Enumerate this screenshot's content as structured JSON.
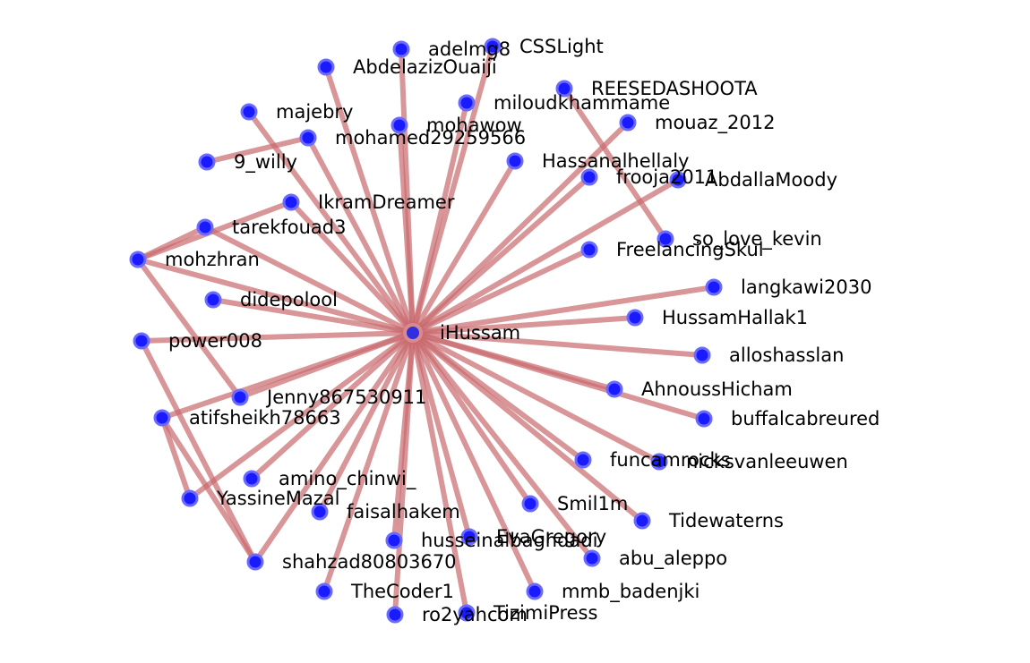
{
  "graph": {
    "hub": {
      "id": "iHussam",
      "label": "iHussam"
    },
    "nodes": [
      {
        "id": "adelmg8",
        "label": "adelmg8"
      },
      {
        "id": "CSSLight",
        "label": "CSSLight"
      },
      {
        "id": "AbdelazizOuaiji",
        "label": "AbdelazizOuaiji"
      },
      {
        "id": "REESEDASHOOTA",
        "label": "REESEDASHOOTA"
      },
      {
        "id": "miloudkhammame",
        "label": "miloudkhammame"
      },
      {
        "id": "majebry",
        "label": "majebry"
      },
      {
        "id": "mohawow",
        "label": "mohawow"
      },
      {
        "id": "mouaz_2012",
        "label": "mouaz_2012"
      },
      {
        "id": "mohamed29259566",
        "label": "mohamed29259566"
      },
      {
        "id": "9_willy",
        "label": "9_willy"
      },
      {
        "id": "Hassanalhellaly",
        "label": "Hassanalhellaly"
      },
      {
        "id": "frooja2011",
        "label": "frooja2011"
      },
      {
        "id": "AbdallaMoody",
        "label": "AbdallaMoody"
      },
      {
        "id": "IkramDreamer",
        "label": "IkramDreamer"
      },
      {
        "id": "tarekfouad3",
        "label": "tarekfouad3"
      },
      {
        "id": "so_love_kevin",
        "label": "so_love_kevin"
      },
      {
        "id": "FreelancingSkul",
        "label": "FreelancingSkul"
      },
      {
        "id": "mohzhran",
        "label": "mohzhran"
      },
      {
        "id": "langkawi2030",
        "label": "langkawi2030"
      },
      {
        "id": "didepolool",
        "label": "didepolool"
      },
      {
        "id": "HussamHallak1",
        "label": "HussamHallak1"
      },
      {
        "id": "power008",
        "label": "power008"
      },
      {
        "id": "alloshasslan",
        "label": "alloshasslan"
      },
      {
        "id": "AhnoussHicham",
        "label": "AhnoussHicham"
      },
      {
        "id": "Jenny867530911",
        "label": "Jenny867530911"
      },
      {
        "id": "atifsheikh78663",
        "label": "atifsheikh78663"
      },
      {
        "id": "buffalcabreured",
        "label": "buffalcabreured"
      },
      {
        "id": "funcamrocks",
        "label": "funcamrocks"
      },
      {
        "id": "nicksvanleeuwen",
        "label": "nicksvanleeuwen"
      },
      {
        "id": "amino_chinwi_",
        "label": "amino_chinwi_"
      },
      {
        "id": "YassineMazal",
        "label": "YassineMazal"
      },
      {
        "id": "faisalhakem",
        "label": "faisalhakem"
      },
      {
        "id": "Smil1m",
        "label": "Smil1m"
      },
      {
        "id": "Tidewaterns",
        "label": "Tidewaterns"
      },
      {
        "id": "husseinalbaghdadi",
        "label": "husseinalbaghdadi"
      },
      {
        "id": "EvaGregory",
        "label": "EvaGregory"
      },
      {
        "id": "abu_aleppo",
        "label": "abu_aleppo"
      },
      {
        "id": "shahzad80803670",
        "label": "shahzad80803670"
      },
      {
        "id": "TheCoder1",
        "label": "TheCoder1"
      },
      {
        "id": "mmb_badenjki",
        "label": "mmb_badenjki"
      },
      {
        "id": "TizimiPress",
        "label": "TizimiPress"
      },
      {
        "id": "ro2yahcom",
        "label": "ro2yahcom"
      }
    ],
    "edges": [
      [
        "iHussam",
        "adelmg8"
      ],
      [
        "iHussam",
        "CSSLight"
      ],
      [
        "iHussam",
        "AbdelazizOuaiji"
      ],
      [
        "iHussam",
        "miloudkhammame"
      ],
      [
        "iHussam",
        "majebry"
      ],
      [
        "iHussam",
        "mohawow"
      ],
      [
        "iHussam",
        "mouaz_2012"
      ],
      [
        "iHussam",
        "mohamed29259566"
      ],
      [
        "iHussam",
        "Hassanalhellaly"
      ],
      [
        "iHussam",
        "frooja2011"
      ],
      [
        "iHussam",
        "AbdallaMoody"
      ],
      [
        "iHussam",
        "IkramDreamer"
      ],
      [
        "iHussam",
        "tarekfouad3"
      ],
      [
        "iHussam",
        "FreelancingSkul"
      ],
      [
        "iHussam",
        "mohzhran"
      ],
      [
        "iHussam",
        "langkawi2030"
      ],
      [
        "iHussam",
        "didepolool"
      ],
      [
        "iHussam",
        "HussamHallak1"
      ],
      [
        "iHussam",
        "power008"
      ],
      [
        "iHussam",
        "alloshasslan"
      ],
      [
        "iHussam",
        "AhnoussHicham"
      ],
      [
        "iHussam",
        "Jenny867530911"
      ],
      [
        "iHussam",
        "atifsheikh78663"
      ],
      [
        "iHussam",
        "buffalcabreured"
      ],
      [
        "iHussam",
        "funcamrocks"
      ],
      [
        "iHussam",
        "nicksvanleeuwen"
      ],
      [
        "iHussam",
        "amino_chinwi_"
      ],
      [
        "iHussam",
        "YassineMazal"
      ],
      [
        "iHussam",
        "faisalhakem"
      ],
      [
        "iHussam",
        "Smil1m"
      ],
      [
        "iHussam",
        "Tidewaterns"
      ],
      [
        "iHussam",
        "husseinalbaghdadi"
      ],
      [
        "iHussam",
        "EvaGregory"
      ],
      [
        "iHussam",
        "abu_aleppo"
      ],
      [
        "iHussam",
        "shahzad80803670"
      ],
      [
        "iHussam",
        "TheCoder1"
      ],
      [
        "iHussam",
        "mmb_badenjki"
      ],
      [
        "iHussam",
        "TizimiPress"
      ],
      [
        "iHussam",
        "ro2yahcom"
      ],
      [
        "REESEDASHOOTA",
        "so_love_kevin"
      ],
      [
        "mohamed29259566",
        "9_willy"
      ],
      [
        "mohzhran",
        "tarekfouad3"
      ],
      [
        "mohzhran",
        "IkramDreamer"
      ],
      [
        "mohzhran",
        "Jenny867530911"
      ],
      [
        "power008",
        "shahzad80803670"
      ],
      [
        "atifsheikh78663",
        "YassineMazal"
      ],
      [
        "atifsheikh78663",
        "shahzad80803670"
      ]
    ]
  },
  "colors": {
    "node_fill": "#1a1aff",
    "node_ring": "#6a6aff",
    "edge": "#c9696e",
    "hub_ring": "#d88a8e"
  }
}
